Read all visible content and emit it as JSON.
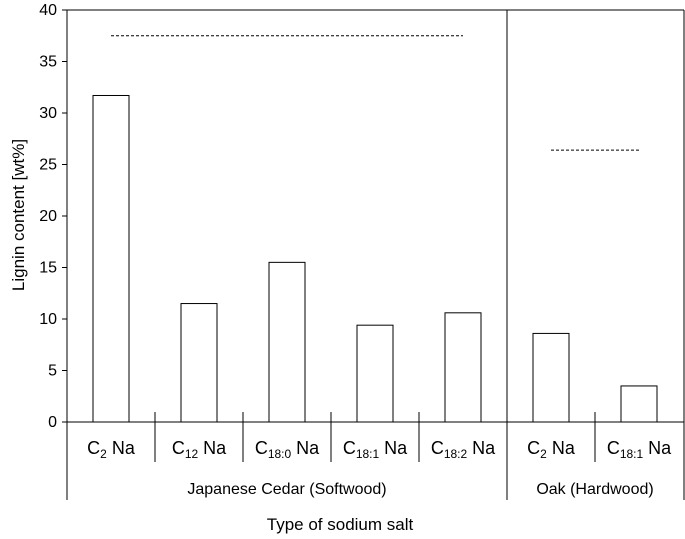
{
  "chart_data": {
    "type": "bar",
    "ylabel": "Lignin content [wt%]",
    "xlabel": "Type of sodium salt",
    "ylim": [
      0,
      40
    ],
    "yticks": [
      0,
      5,
      10,
      15,
      20,
      25,
      30,
      35,
      40
    ],
    "grid": false,
    "groups": [
      {
        "name": "Japanese Cedar (Softwood)",
        "reference_line": 37.5,
        "categories": [
          {
            "base": "C",
            "sub": "2",
            "suffix": " Na",
            "value": 31.7
          },
          {
            "base": "C",
            "sub": "12",
            "suffix": " Na",
            "value": 11.5
          },
          {
            "base": "C",
            "sub": "18:0",
            "suffix": " Na",
            "value": 15.5
          },
          {
            "base": "C",
            "sub": "18:1",
            "suffix": " Na",
            "value": 9.4
          },
          {
            "base": "C",
            "sub": "18:2",
            "suffix": " Na",
            "value": 10.6
          }
        ]
      },
      {
        "name": "Oak (Hardwood)",
        "reference_line": 26.4,
        "categories": [
          {
            "base": "C",
            "sub": "2",
            "suffix": " Na",
            "value": 8.6
          },
          {
            "base": "C",
            "sub": "18:1",
            "suffix": " Na",
            "value": 3.5
          }
        ]
      }
    ]
  }
}
